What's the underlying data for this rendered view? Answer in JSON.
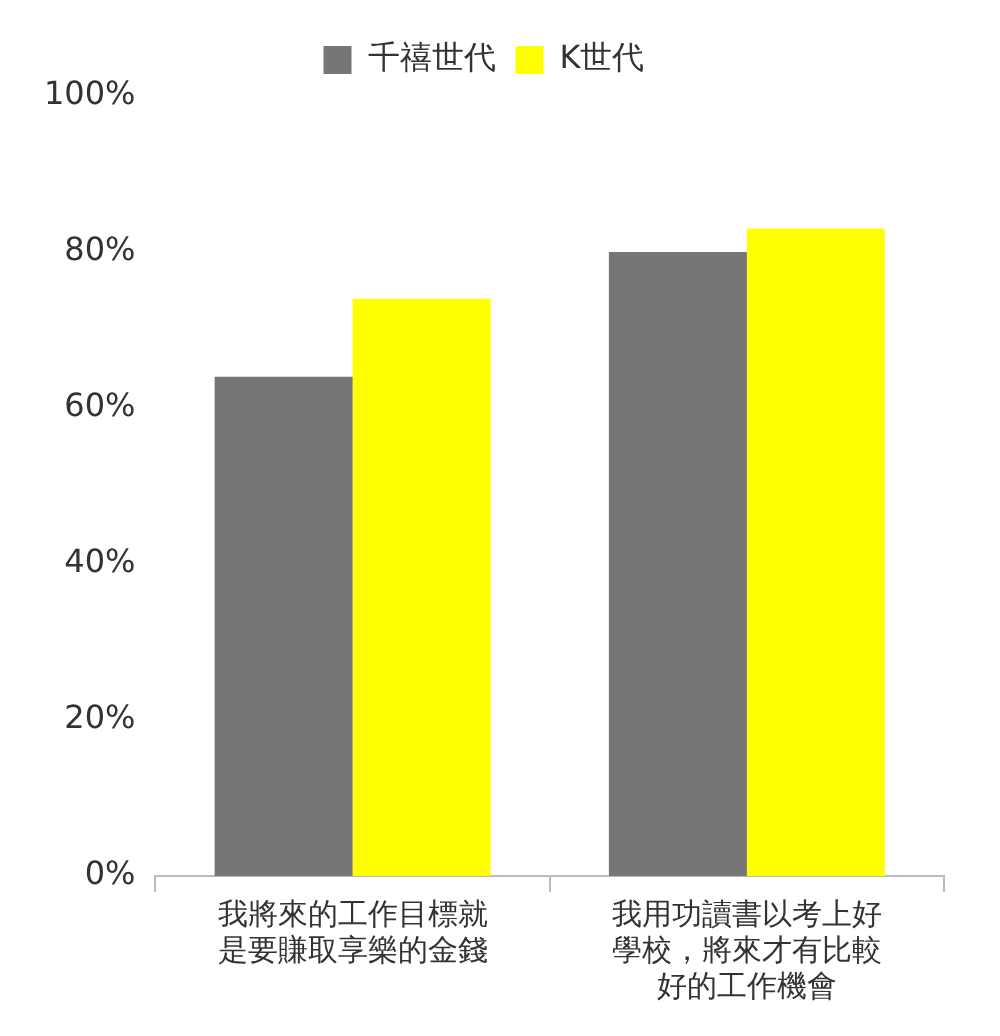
{
  "chart_data": {
    "type": "bar",
    "categories": [
      "我將來的工作目標就是要賺取享樂的金錢",
      "我用功讀書以考上好學校，將來才有比較好的工作機會"
    ],
    "series": [
      {
        "name": "千禧世代",
        "color": "#767676",
        "values": [
          64,
          80
        ]
      },
      {
        "name": "K世代",
        "color": "#ffff00",
        "values": [
          74,
          83
        ]
      }
    ],
    "ylim": [
      0,
      100
    ],
    "yticks": [
      {
        "value": 0,
        "label": "0%"
      },
      {
        "value": 20,
        "label": "20%"
      },
      {
        "value": 40,
        "label": "40%"
      },
      {
        "value": 60,
        "label": "60%"
      },
      {
        "value": 80,
        "label": "80%"
      },
      {
        "value": 100,
        "label": "100%"
      }
    ],
    "grid": false,
    "legend": "top"
  }
}
